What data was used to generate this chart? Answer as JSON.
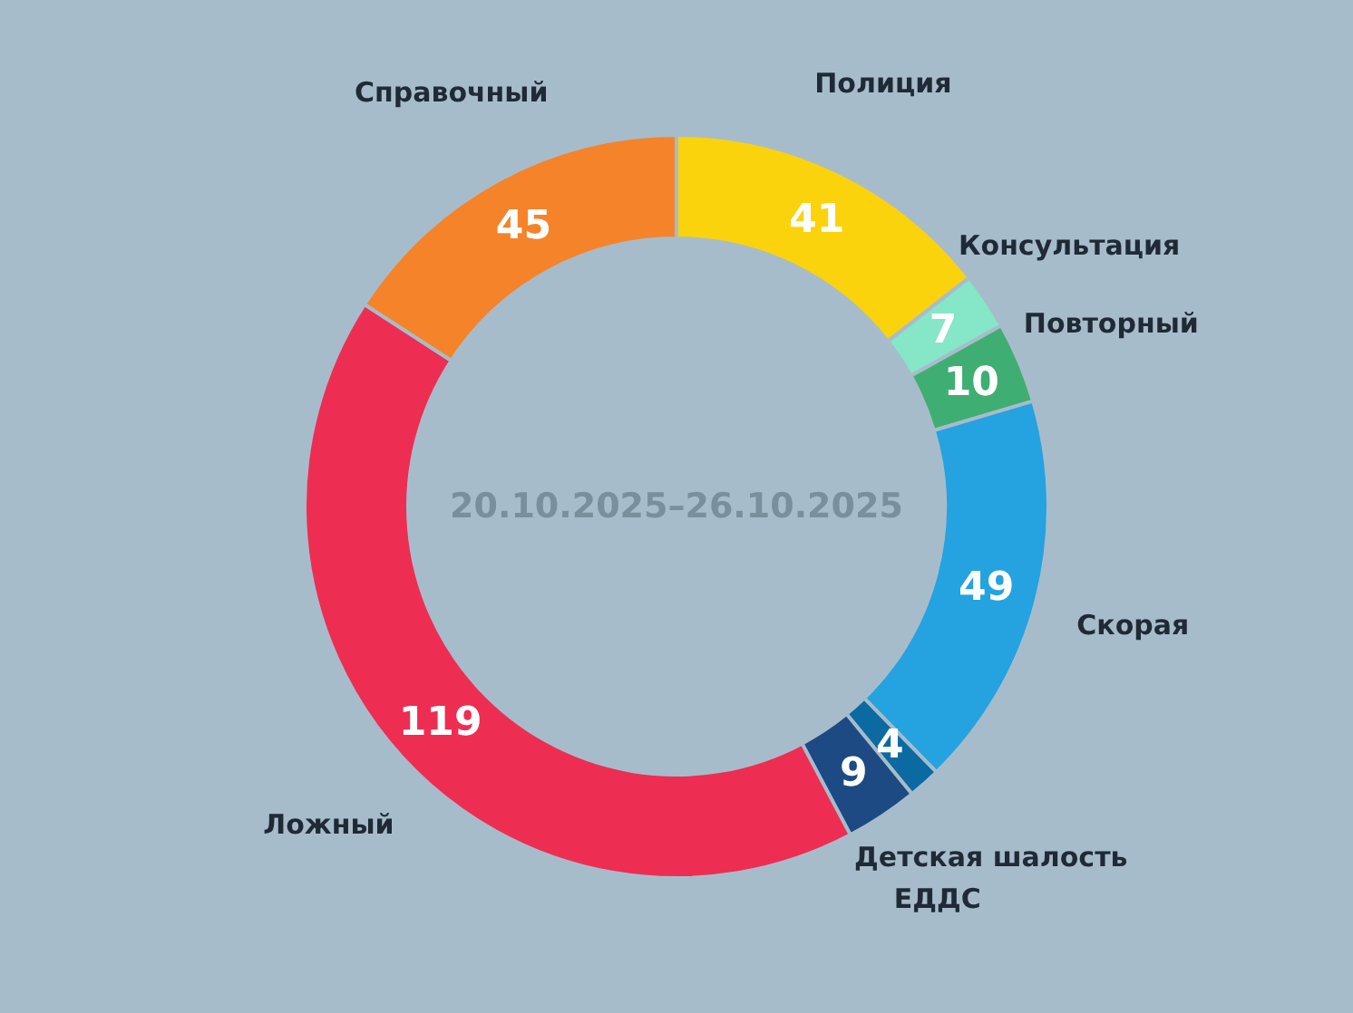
{
  "chart_data": {
    "type": "donut",
    "title": "20.10.2025–26.10.2025",
    "categories": [
      "Полиция",
      "Консультация",
      "Повторный",
      "Скорая",
      "Детская шалость",
      "ЕДДС",
      "Ложный",
      "Справочный"
    ],
    "values": [
      41,
      7,
      10,
      49,
      4,
      9,
      119,
      45
    ],
    "colors": [
      "#fbd30c",
      "#86e6c8",
      "#3fae72",
      "#25a2e0",
      "#0b6aa2",
      "#1d4a82",
      "#ee2d53",
      "#f5832a"
    ],
    "data_labels": true
  }
}
